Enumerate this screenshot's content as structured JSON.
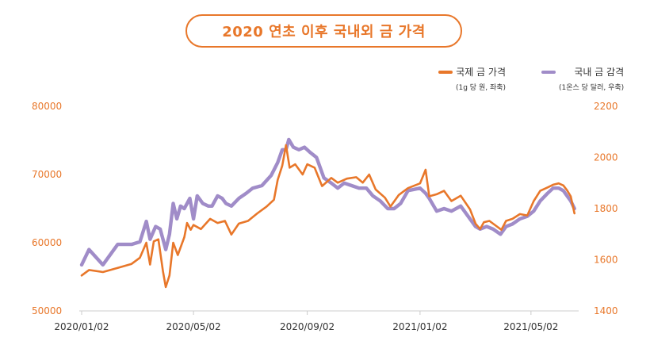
{
  "title": "2020 연초 이후 국내외 금 가격",
  "colors": {
    "international": "#e8772a",
    "domestic": "#a08cc8",
    "accent": "#e8772a"
  },
  "legend": [
    {
      "name": "국제 금 가격",
      "note": "(1g 당 원, 좌축)",
      "color": "#e8772a"
    },
    {
      "name": "국내 금 감격",
      "note": "(1온스 당 달러, 우축)",
      "color": "#a08cc8"
    }
  ],
  "chart_data": {
    "type": "line",
    "title": "2020 연초 이후 국내외 금 가격",
    "x_range": [
      "2020-01-02",
      "2021-06-20"
    ],
    "xticks": [
      {
        "date": "2020-01-02",
        "label": "2020/01/02"
      },
      {
        "date": "2020-05-02",
        "label": "2020/05/02"
      },
      {
        "date": "2020-09-02",
        "label": "2020/09/02"
      },
      {
        "date": "2021-01-02",
        "label": "2021/01/02"
      },
      {
        "date": "2021-05-02",
        "label": "2021/05/02"
      }
    ],
    "left_axis": {
      "ylim": [
        50000,
        80000
      ],
      "ticks": [
        "50000",
        "60000",
        "70000",
        "80000"
      ]
    },
    "right_axis": {
      "ylim": [
        1400,
        2200
      ],
      "ticks": [
        "1400",
        "1600",
        "1800",
        "2000",
        "2200"
      ]
    },
    "grid": false,
    "legend_position": "top-right",
    "series": [
      {
        "name": "국제 금 가격",
        "axis": "left",
        "color": "#e8772a",
        "points": [
          [
            "2020-01-02",
            55200
          ],
          [
            "2020-01-10",
            56000
          ],
          [
            "2020-01-25",
            55700
          ],
          [
            "2020-02-10",
            56300
          ],
          [
            "2020-02-25",
            56900
          ],
          [
            "2020-03-05",
            57800
          ],
          [
            "2020-03-12",
            60000
          ],
          [
            "2020-03-16",
            56800
          ],
          [
            "2020-03-20",
            60200
          ],
          [
            "2020-03-25",
            60500
          ],
          [
            "2020-03-30",
            55800
          ],
          [
            "2020-04-02",
            53500
          ],
          [
            "2020-04-06",
            55200
          ],
          [
            "2020-04-10",
            60000
          ],
          [
            "2020-04-15",
            58200
          ],
          [
            "2020-04-22",
            60800
          ],
          [
            "2020-04-25",
            62900
          ],
          [
            "2020-04-29",
            61900
          ],
          [
            "2020-05-02",
            62600
          ],
          [
            "2020-05-10",
            62000
          ],
          [
            "2020-05-20",
            63500
          ],
          [
            "2020-05-28",
            62900
          ],
          [
            "2020-06-05",
            63200
          ],
          [
            "2020-06-12",
            61200
          ],
          [
            "2020-06-20",
            62800
          ],
          [
            "2020-06-30",
            63200
          ],
          [
            "2020-07-10",
            64300
          ],
          [
            "2020-07-20",
            65300
          ],
          [
            "2020-07-28",
            66300
          ],
          [
            "2020-08-01",
            69200
          ],
          [
            "2020-08-06",
            71300
          ],
          [
            "2020-08-10",
            74300
          ],
          [
            "2020-08-14",
            71000
          ],
          [
            "2020-08-20",
            71500
          ],
          [
            "2020-08-28",
            70000
          ],
          [
            "2020-09-02",
            71500
          ],
          [
            "2020-09-10",
            71000
          ],
          [
            "2020-09-18",
            68300
          ],
          [
            "2020-09-28",
            69500
          ],
          [
            "2020-10-05",
            68800
          ],
          [
            "2020-10-15",
            69400
          ],
          [
            "2020-10-25",
            69600
          ],
          [
            "2020-11-01",
            68800
          ],
          [
            "2020-11-08",
            70000
          ],
          [
            "2020-11-15",
            67800
          ],
          [
            "2020-11-25",
            66600
          ],
          [
            "2020-12-01",
            65300
          ],
          [
            "2020-12-10",
            67000
          ],
          [
            "2020-12-20",
            68000
          ],
          [
            "2021-01-02",
            68700
          ],
          [
            "2021-01-08",
            70700
          ],
          [
            "2021-01-12",
            66800
          ],
          [
            "2021-01-20",
            67100
          ],
          [
            "2021-01-28",
            67600
          ],
          [
            "2021-02-05",
            66100
          ],
          [
            "2021-02-15",
            66900
          ],
          [
            "2021-02-25",
            64900
          ],
          [
            "2021-03-03",
            62800
          ],
          [
            "2021-03-08",
            62000
          ],
          [
            "2021-03-12",
            63000
          ],
          [
            "2021-03-18",
            63200
          ],
          [
            "2021-03-25",
            62500
          ],
          [
            "2021-03-31",
            61900
          ],
          [
            "2021-04-05",
            63200
          ],
          [
            "2021-04-12",
            63500
          ],
          [
            "2021-04-20",
            64200
          ],
          [
            "2021-04-28",
            64000
          ],
          [
            "2021-05-05",
            66100
          ],
          [
            "2021-05-12",
            67600
          ],
          [
            "2021-05-20",
            68100
          ],
          [
            "2021-05-26",
            68500
          ],
          [
            "2021-06-01",
            68700
          ],
          [
            "2021-06-06",
            68400
          ],
          [
            "2021-06-10",
            67700
          ],
          [
            "2021-06-14",
            66800
          ],
          [
            "2021-06-18",
            64300
          ]
        ]
      },
      {
        "name": "국내 금 감격",
        "axis": "right",
        "color": "#a08cc8",
        "points": [
          [
            "2020-01-02",
            1580
          ],
          [
            "2020-01-10",
            1640
          ],
          [
            "2020-01-25",
            1580
          ],
          [
            "2020-02-10",
            1660
          ],
          [
            "2020-02-25",
            1660
          ],
          [
            "2020-03-05",
            1670
          ],
          [
            "2020-03-12",
            1750
          ],
          [
            "2020-03-16",
            1680
          ],
          [
            "2020-03-22",
            1730
          ],
          [
            "2020-03-27",
            1720
          ],
          [
            "2020-04-02",
            1640
          ],
          [
            "2020-04-06",
            1700
          ],
          [
            "2020-04-10",
            1820
          ],
          [
            "2020-04-14",
            1760
          ],
          [
            "2020-04-18",
            1810
          ],
          [
            "2020-04-22",
            1800
          ],
          [
            "2020-04-28",
            1840
          ],
          [
            "2020-05-02",
            1760
          ],
          [
            "2020-05-06",
            1850
          ],
          [
            "2020-05-12",
            1820
          ],
          [
            "2020-05-18",
            1810
          ],
          [
            "2020-05-22",
            1810
          ],
          [
            "2020-05-28",
            1850
          ],
          [
            "2020-06-02",
            1840
          ],
          [
            "2020-06-06",
            1820
          ],
          [
            "2020-06-12",
            1810
          ],
          [
            "2020-06-20",
            1840
          ],
          [
            "2020-06-28",
            1860
          ],
          [
            "2020-07-05",
            1880
          ],
          [
            "2020-07-15",
            1890
          ],
          [
            "2020-07-25",
            1930
          ],
          [
            "2020-08-01",
            1980
          ],
          [
            "2020-08-06",
            2030
          ],
          [
            "2020-08-10",
            2030
          ],
          [
            "2020-08-13",
            2070
          ],
          [
            "2020-08-18",
            2040
          ],
          [
            "2020-08-24",
            2030
          ],
          [
            "2020-08-30",
            2040
          ],
          [
            "2020-09-05",
            2020
          ],
          [
            "2020-09-12",
            2000
          ],
          [
            "2020-09-20",
            1920
          ],
          [
            "2020-09-28",
            1900
          ],
          [
            "2020-10-05",
            1880
          ],
          [
            "2020-10-12",
            1900
          ],
          [
            "2020-10-20",
            1890
          ],
          [
            "2020-10-28",
            1880
          ],
          [
            "2020-11-05",
            1880
          ],
          [
            "2020-11-12",
            1850
          ],
          [
            "2020-11-20",
            1830
          ],
          [
            "2020-11-28",
            1800
          ],
          [
            "2020-12-05",
            1800
          ],
          [
            "2020-12-12",
            1820
          ],
          [
            "2020-12-20",
            1870
          ],
          [
            "2021-01-02",
            1880
          ],
          [
            "2021-01-08",
            1860
          ],
          [
            "2021-01-12",
            1840
          ],
          [
            "2021-01-20",
            1790
          ],
          [
            "2021-01-28",
            1800
          ],
          [
            "2021-02-05",
            1790
          ],
          [
            "2021-02-15",
            1810
          ],
          [
            "2021-02-25",
            1760
          ],
          [
            "2021-03-03",
            1730
          ],
          [
            "2021-03-08",
            1720
          ],
          [
            "2021-03-15",
            1730
          ],
          [
            "2021-03-22",
            1720
          ],
          [
            "2021-03-30",
            1700
          ],
          [
            "2021-04-05",
            1730
          ],
          [
            "2021-04-12",
            1740
          ],
          [
            "2021-04-20",
            1760
          ],
          [
            "2021-04-28",
            1770
          ],
          [
            "2021-05-05",
            1790
          ],
          [
            "2021-05-12",
            1830
          ],
          [
            "2021-05-20",
            1860
          ],
          [
            "2021-05-26",
            1880
          ],
          [
            "2021-06-01",
            1880
          ],
          [
            "2021-06-06",
            1870
          ],
          [
            "2021-06-10",
            1850
          ],
          [
            "2021-06-14",
            1830
          ],
          [
            "2021-06-18",
            1800
          ]
        ]
      }
    ]
  }
}
